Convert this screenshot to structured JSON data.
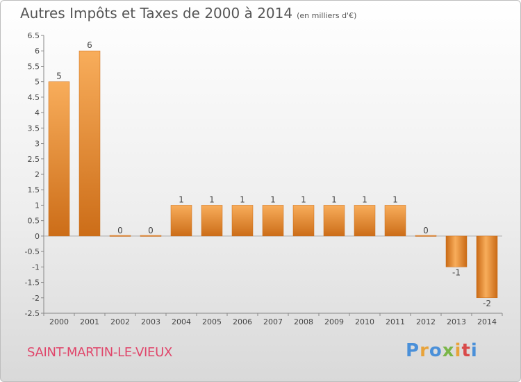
{
  "header": {
    "title": "Autres Impôts et Taxes de 2000 à 2014",
    "unit": "(en milliers d'€)"
  },
  "footer": {
    "town": "SAINT-MARTIN-LE-VIEUX",
    "logo": "Proxiti",
    "logo_colors": [
      "#4a90d9",
      "#e8a33a",
      "#4a90d9",
      "#7ab648",
      "#e8a33a",
      "#d94a4a",
      "#4a90d9"
    ]
  },
  "colors": {
    "bar": "#e8862e",
    "bar_light": "#f8ad5b",
    "bar_dark": "#c96a15",
    "axis": "#888888",
    "text": "#444444",
    "town": "#e0456a"
  },
  "chart_data": {
    "type": "bar",
    "categories": [
      "2000",
      "2001",
      "2002",
      "2003",
      "2004",
      "2005",
      "2006",
      "2007",
      "2008",
      "2009",
      "2010",
      "2011",
      "2012",
      "2013",
      "2014"
    ],
    "values": [
      5,
      6,
      0,
      0,
      1,
      1,
      1,
      1,
      1,
      1,
      1,
      1,
      0,
      -1,
      -2
    ],
    "data_labels": [
      "5",
      "6",
      "0",
      "0",
      "1",
      "1",
      "1",
      "1",
      "1",
      "1",
      "1",
      "1",
      "0",
      "-1",
      "-2"
    ],
    "yticks": [
      6.5,
      6,
      5.5,
      5,
      4.5,
      4,
      3.5,
      3,
      2.5,
      2,
      1.5,
      1,
      0.5,
      0,
      -0.5,
      -1,
      -1.5,
      -2,
      -2.5
    ],
    "ytick_labels": [
      "6.5",
      "6",
      "5.5",
      "5",
      "4.5",
      "4",
      "3.5",
      "3",
      "2.5",
      "2",
      "1.5",
      "1",
      "0.5",
      "0",
      "-0.5",
      "-1",
      "-1.5",
      "-2",
      "-2.5"
    ],
    "ylim": [
      -2.5,
      6.5
    ],
    "title": "Autres Impôts et Taxes de 2000 à 2014",
    "xlabel": "",
    "ylabel": "",
    "grid": false,
    "legend": "none"
  }
}
